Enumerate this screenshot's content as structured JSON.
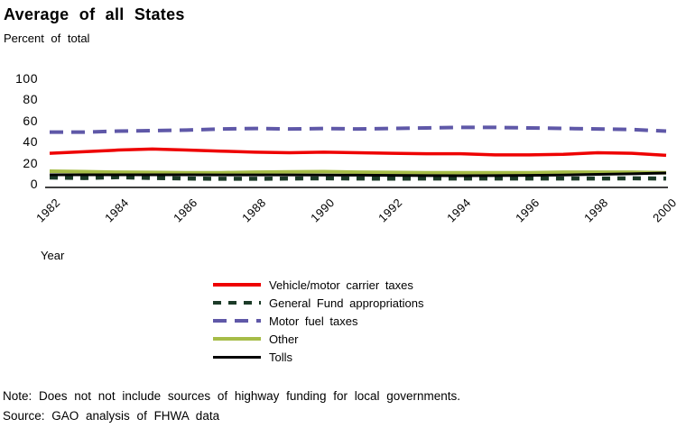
{
  "header": {
    "title": "Average of all States",
    "subtitle": "Percent of total"
  },
  "chart_data": {
    "type": "line",
    "title": "Average of all States",
    "subtitle": "Percent of total",
    "xlabel": "Year",
    "ylabel": "Percent of total",
    "ylim": [
      0,
      100
    ],
    "grid": false,
    "legend_position": "bottom-center",
    "axis_color": "#000000",
    "x": [
      1982,
      1983,
      1984,
      1985,
      1986,
      1987,
      1988,
      1989,
      1990,
      1991,
      1992,
      1993,
      1994,
      1995,
      1996,
      1997,
      1998,
      1999,
      2000
    ],
    "xticks": [
      1982,
      1984,
      1986,
      1988,
      1990,
      1992,
      1994,
      1996,
      1998,
      2000
    ],
    "yticks": [
      0,
      20,
      40,
      60,
      80,
      100
    ],
    "series": [
      {
        "name": "Vehicle/motor carrier taxes",
        "color": "#ee0000",
        "style": "solid",
        "width": 3.5,
        "dash": "",
        "values": [
          29,
          30.5,
          32,
          33,
          32,
          31,
          30,
          29.5,
          30,
          29.5,
          29,
          28.5,
          28.5,
          27.5,
          27.5,
          28,
          29.5,
          29,
          27
        ]
      },
      {
        "name": "General Fund appropriations",
        "color": "#1c3b28",
        "style": "dashed",
        "width": 4.5,
        "dash": "9 8",
        "values": [
          6,
          5.5,
          6.3,
          5.5,
          5,
          4.8,
          4.8,
          5,
          5.2,
          5,
          4.9,
          5,
          5,
          5,
          5,
          5,
          5,
          5.2,
          5
        ]
      },
      {
        "name": "Motor fuel taxes",
        "color": "#5f58a8",
        "style": "dashed",
        "width": 4,
        "dash": "15 9",
        "values": [
          49,
          49,
          50,
          50.5,
          51,
          52,
          52.5,
          52,
          52.5,
          52,
          52.5,
          53,
          53.5,
          53.5,
          53,
          52.5,
          52,
          51.5,
          50
        ]
      },
      {
        "name": "Other",
        "color": "#a6bc47",
        "style": "solid",
        "width": 4,
        "dash": "",
        "values": [
          12,
          11.5,
          11,
          10.8,
          10.5,
          10.5,
          11,
          11.3,
          11.5,
          11,
          10.8,
          10.5,
          10.5,
          10.5,
          10.5,
          11,
          11,
          11,
          10.5
        ]
      },
      {
        "name": "Tolls",
        "color": "#000000",
        "style": "solid",
        "width": 3,
        "dash": "",
        "values": [
          8.5,
          8.5,
          8.5,
          8.5,
          8.5,
          8.4,
          8.4,
          8.4,
          8.3,
          8.2,
          8,
          7.8,
          7.7,
          7.8,
          8,
          8.3,
          9,
          9.5,
          10.3
        ]
      }
    ]
  },
  "footer": {
    "note": "Note: Does not not include sources of highway funding for local governments.",
    "source": "Source: GAO analysis of FHWA data"
  }
}
